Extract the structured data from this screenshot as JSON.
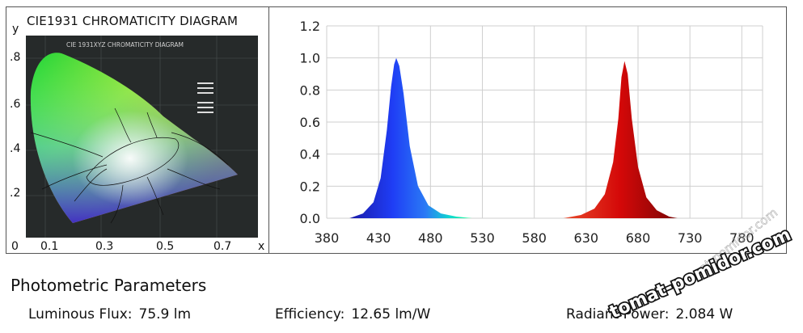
{
  "cie": {
    "title": "CIE1931 CHROMATICITY DIAGRAM",
    "inner_title": "CIE 1931XYZ CHROMATICITY DIAGRAM",
    "y_letter": "y",
    "x_letter": "x",
    "y_ticks": [
      ".8",
      ".6",
      ".4",
      ".2"
    ],
    "x_ticks": [
      "0",
      "0.1",
      "0.3",
      "0.5",
      "0.7"
    ]
  },
  "chart_data": {
    "type": "area",
    "title": "",
    "xlabel": "",
    "ylabel": "",
    "xlim": [
      380,
      800
    ],
    "ylim": [
      0,
      1.2
    ],
    "x_ticks": [
      380,
      430,
      480,
      530,
      580,
      630,
      680,
      730,
      780
    ],
    "y_ticks": [
      "0.0",
      "0.2",
      "0.4",
      "0.6",
      "0.8",
      "1.0",
      "1.2"
    ],
    "grid": true,
    "series": [
      {
        "peak_nm": 447,
        "peak": 1.0,
        "x": [
          402,
          415,
          425,
          432,
          438,
          442,
          445,
          447,
          450,
          454,
          460,
          468,
          478,
          490,
          505,
          520
        ],
        "y": [
          0.0,
          0.03,
          0.1,
          0.25,
          0.55,
          0.82,
          0.96,
          1.0,
          0.95,
          0.78,
          0.45,
          0.2,
          0.08,
          0.03,
          0.01,
          0.0
        ]
      },
      {
        "peak_nm": 667,
        "peak": 0.98,
        "x": [
          608,
          625,
          638,
          648,
          656,
          661,
          664,
          667,
          670,
          674,
          680,
          688,
          698,
          710,
          718
        ],
        "y": [
          0.0,
          0.02,
          0.06,
          0.15,
          0.35,
          0.62,
          0.88,
          0.98,
          0.9,
          0.62,
          0.32,
          0.13,
          0.05,
          0.01,
          0.0
        ]
      }
    ]
  },
  "section_title": "Photometric Parameters",
  "params": [
    {
      "label": "Luminous Flux:",
      "value": "75.9 lm"
    },
    {
      "label": "Efficiency:",
      "value": "12.65 lm/W"
    },
    {
      "label": "Radiant Power:",
      "value": "2.084 W"
    }
  ],
  "watermark": {
    "text": "tomat-pomidor.com"
  }
}
